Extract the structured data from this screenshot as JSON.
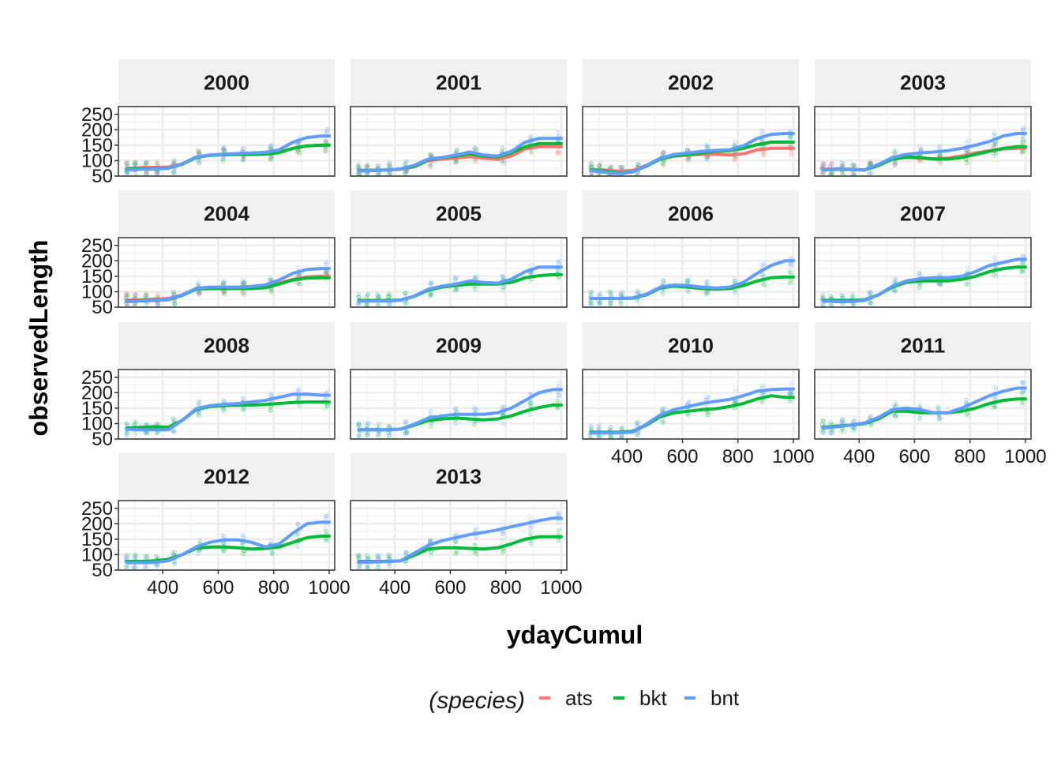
{
  "chart_data": {
    "type": "line",
    "xlabel": "ydayCumul",
    "ylabel": "observedLength",
    "xlim": [
      240,
      1020
    ],
    "ylim": [
      50,
      275
    ],
    "xticks": [
      400,
      600,
      800,
      1000
    ],
    "yticks": [
      50,
      100,
      150,
      200,
      250
    ],
    "legend": {
      "title": "(species)",
      "position": "bottom",
      "entries": [
        {
          "name": "ats",
          "color": "#F8766D"
        },
        {
          "name": "bkt",
          "color": "#00BA38"
        },
        {
          "name": "bnt",
          "color": "#619CFF"
        }
      ]
    },
    "x": [
      270,
      320,
      370,
      420,
      470,
      520,
      570,
      620,
      670,
      720,
      770,
      820,
      870,
      920,
      970,
      1000
    ],
    "panels": [
      {
        "label": "2000",
        "series": [
          {
            "name": "ats",
            "values": [
              75,
              77,
              78,
              79,
              90,
              112,
              118,
              120,
              120,
              121,
              122,
              128,
              140,
              148,
              150,
              150
            ]
          },
          {
            "name": "bkt",
            "values": [
              72,
              74,
              75,
              76,
              88,
              110,
              117,
              119,
              120,
              120,
              121,
              126,
              140,
              148,
              150,
              150
            ]
          },
          {
            "name": "bnt",
            "values": [
              70,
              72,
              73,
              75,
              90,
              112,
              118,
              121,
              123,
              125,
              127,
              135,
              160,
              175,
              180,
              180
            ]
          }
        ]
      },
      {
        "label": "2001",
        "series": [
          {
            "name": "ats",
            "values": [
              68,
              68,
              70,
              72,
              80,
              100,
              105,
              108,
              113,
              108,
              104,
              115,
              138,
              145,
              145,
              145
            ]
          },
          {
            "name": "bkt",
            "values": [
              68,
              69,
              70,
              73,
              82,
              102,
              110,
              115,
              122,
              115,
              112,
              125,
              145,
              155,
              155,
              155
            ]
          },
          {
            "name": "bnt",
            "values": [
              66,
              68,
              70,
              73,
              85,
              105,
              110,
              118,
              128,
              118,
              115,
              130,
              160,
              172,
              172,
              172
            ]
          }
        ]
      },
      {
        "label": "2002",
        "series": [
          {
            "name": "ats",
            "values": [
              72,
              70,
              66,
              68,
              85,
              105,
              115,
              118,
              120,
              121,
              118,
              122,
              135,
              140,
              140,
              140
            ]
          },
          {
            "name": "bkt",
            "values": [
              70,
              66,
              60,
              64,
              82,
              105,
              115,
              120,
              125,
              130,
              132,
              140,
              152,
              160,
              160,
              160
            ]
          },
          {
            "name": "bnt",
            "values": [
              68,
              62,
              58,
              63,
              84,
              108,
              120,
              125,
              130,
              133,
              135,
              148,
              172,
              185,
              188,
              188
            ]
          }
        ]
      },
      {
        "label": "2003",
        "series": [
          {
            "name": "ats",
            "values": [
              72,
              74,
              72,
              70,
              85,
              105,
              110,
              108,
              106,
              108,
              115,
              125,
              132,
              138,
              140,
              140
            ]
          },
          {
            "name": "bkt",
            "values": [
              70,
              72,
              71,
              70,
              84,
              105,
              112,
              110,
              105,
              105,
              110,
              120,
              130,
              140,
              145,
              145
            ]
          },
          {
            "name": "bnt",
            "values": [
              70,
              73,
              72,
              70,
              88,
              110,
              120,
              125,
              128,
              132,
              140,
              150,
              162,
              180,
              188,
              188
            ]
          }
        ]
      },
      {
        "label": "2004",
        "series": [
          {
            "name": "ats",
            "values": [
              72,
              74,
              76,
              78,
              90,
              110,
              112,
              112,
              112,
              112,
              115,
              128,
              140,
              148,
              150,
              150
            ]
          },
          {
            "name": "bkt",
            "values": [
              70,
              71,
              72,
              74,
              88,
              108,
              110,
              110,
              110,
              110,
              113,
              125,
              138,
              144,
              145,
              145
            ]
          },
          {
            "name": "bnt",
            "values": [
              68,
              70,
              72,
              75,
              90,
              110,
              115,
              115,
              115,
              117,
              122,
              138,
              160,
              172,
              175,
              175
            ]
          }
        ]
      },
      {
        "label": "2005",
        "series": [
          {
            "name": "bkt",
            "values": [
              72,
              72,
              72,
              73,
              85,
              105,
              115,
              120,
              125,
              125,
              125,
              130,
              145,
              152,
              155,
              155
            ]
          },
          {
            "name": "bnt",
            "values": [
              70,
              70,
              70,
              72,
              86,
              108,
              118,
              125,
              135,
              130,
              128,
              140,
              165,
              180,
              180,
              180
            ]
          }
        ]
      },
      {
        "label": "2006",
        "series": [
          {
            "name": "bkt",
            "values": [
              78,
              78,
              78,
              79,
              90,
              112,
              118,
              115,
              110,
              108,
              110,
              120,
              135,
              145,
              148,
              148
            ]
          },
          {
            "name": "bnt",
            "values": [
              78,
              78,
              78,
              80,
              92,
              115,
              122,
              120,
              115,
              112,
              115,
              130,
              160,
              185,
              200,
              200
            ]
          }
        ]
      },
      {
        "label": "2007",
        "series": [
          {
            "name": "bkt",
            "values": [
              72,
              72,
              72,
              74,
              90,
              115,
              130,
              135,
              135,
              135,
              140,
              150,
              165,
              175,
              180,
              180
            ]
          },
          {
            "name": "bnt",
            "values": [
              70,
              68,
              68,
              72,
              90,
              118,
              135,
              142,
              145,
              145,
              150,
              165,
              185,
              195,
              205,
              205
            ]
          }
        ]
      },
      {
        "label": "2008",
        "series": [
          {
            "name": "bkt",
            "values": [
              85,
              88,
              90,
              88,
              110,
              145,
              155,
              158,
              160,
              160,
              162,
              165,
              168,
              170,
              170,
              170
            ]
          },
          {
            "name": "bnt",
            "values": [
              82,
              80,
              80,
              80,
              110,
              148,
              158,
              162,
              165,
              170,
              175,
              185,
              195,
              195,
              192,
              192
            ]
          }
        ]
      },
      {
        "label": "2009",
        "series": [
          {
            "name": "bkt",
            "values": [
              80,
              80,
              80,
              82,
              95,
              110,
              115,
              118,
              115,
              112,
              115,
              125,
              140,
              152,
              160,
              160
            ]
          },
          {
            "name": "bnt",
            "values": [
              80,
              80,
              80,
              82,
              98,
              118,
              125,
              130,
              130,
              130,
              135,
              150,
              175,
              200,
              210,
              210
            ]
          }
        ]
      },
      {
        "label": "2010",
        "series": [
          {
            "name": "bkt",
            "values": [
              72,
              72,
              72,
              75,
              95,
              122,
              135,
              140,
              145,
              148,
              155,
              165,
              180,
              190,
              185,
              185
            ]
          },
          {
            "name": "bnt",
            "values": [
              70,
              70,
              70,
              72,
              98,
              128,
              145,
              155,
              165,
              172,
              178,
              190,
              205,
              210,
              212,
              212
            ]
          }
        ]
      },
      {
        "label": "2011",
        "series": [
          {
            "name": "bkt",
            "values": [
              88,
              92,
              95,
              100,
              115,
              140,
              140,
              135,
              135,
              135,
              140,
              150,
              165,
              175,
              180,
              180
            ]
          },
          {
            "name": "bnt",
            "values": [
              85,
              90,
              95,
              102,
              120,
              145,
              150,
              145,
              135,
              135,
              150,
              170,
              190,
              205,
              215,
              215
            ]
          }
        ]
      },
      {
        "label": "2012",
        "series": [
          {
            "name": "bkt",
            "values": [
              78,
              78,
              80,
              85,
              100,
              120,
              125,
              125,
              122,
              118,
              120,
              125,
              140,
              155,
              160,
              160
            ]
          },
          {
            "name": "bnt",
            "values": [
              74,
              74,
              75,
              80,
              100,
              125,
              140,
              148,
              148,
              140,
              125,
              135,
              170,
              200,
              205,
              205
            ]
          }
        ]
      },
      {
        "label": "2013",
        "series": [
          {
            "name": "bkt",
            "values": [
              78,
              78,
              78,
              80,
              98,
              118,
              122,
              122,
              120,
              118,
              122,
              135,
              150,
              158,
              158,
              158
            ]
          },
          {
            "name": "bnt",
            "values": [
              75,
              76,
              77,
              80,
              105,
              130,
              145,
              155,
              165,
              172,
              180,
              190,
              200,
              210,
              218,
              218
            ]
          }
        ]
      }
    ]
  }
}
